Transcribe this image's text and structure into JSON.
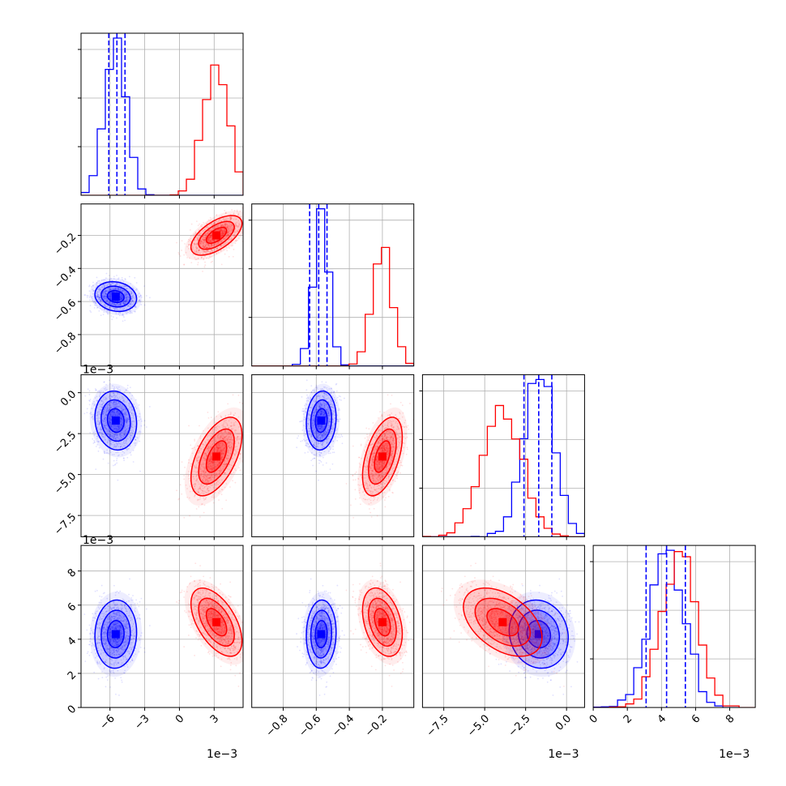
{
  "chart_data": {
    "type": "corner",
    "grid": true,
    "colors": {
      "blue": "#0000ff",
      "red": "#ff0000"
    },
    "params": [
      {
        "range": [
          -0.0085,
          0.0055
        ],
        "ticks": [
          -6,
          -3,
          0,
          3
        ],
        "tick_labels": [
          "−6",
          "−3",
          "0",
          "3"
        ],
        "offset": "1e−3",
        "scale": 0.001
      },
      {
        "range": [
          -0.99,
          -0.01
        ],
        "ticks": [
          -0.8,
          -0.6,
          -0.4,
          -0.2
        ],
        "tick_labels": [
          "−0.8",
          "−0.6",
          "−0.4",
          "−0.2"
        ]
      },
      {
        "range": [
          -0.0088,
          0.0011
        ],
        "ticks": [
          -7.5,
          -5.0,
          -2.5,
          0.0
        ],
        "tick_labels": [
          "−7.5",
          "−5.0",
          "−2.5",
          "0.0"
        ],
        "offset": "1e−3",
        "scale": 0.001
      },
      {
        "range": [
          0.0,
          0.0095
        ],
        "ticks": [
          0,
          2,
          4,
          6,
          8
        ],
        "tick_labels": [
          "0",
          "2",
          "4",
          "6",
          "8"
        ],
        "offset": "1e−3",
        "scale": 0.001
      }
    ],
    "series": [
      {
        "color": "#0000ff",
        "mean": [
          -0.0055,
          -0.57,
          -0.0017,
          0.0043
        ],
        "sd": [
          0.0009,
          0.045,
          0.0009,
          0.001
        ],
        "quantiles": [
          [
            -0.0061,
            -0.0054,
            -0.0047
          ],
          [
            -0.64,
            -0.585,
            -0.535
          ],
          [
            -0.0026,
            -0.0017,
            -0.0009
          ],
          [
            0.0031,
            0.0043,
            0.0054
          ]
        ]
      },
      {
        "color": "#ff0000",
        "mean": [
          0.0032,
          -0.2,
          -0.0039,
          0.005
        ],
        "sd": [
          0.0011,
          0.06,
          0.0012,
          0.001
        ]
      }
    ]
  }
}
